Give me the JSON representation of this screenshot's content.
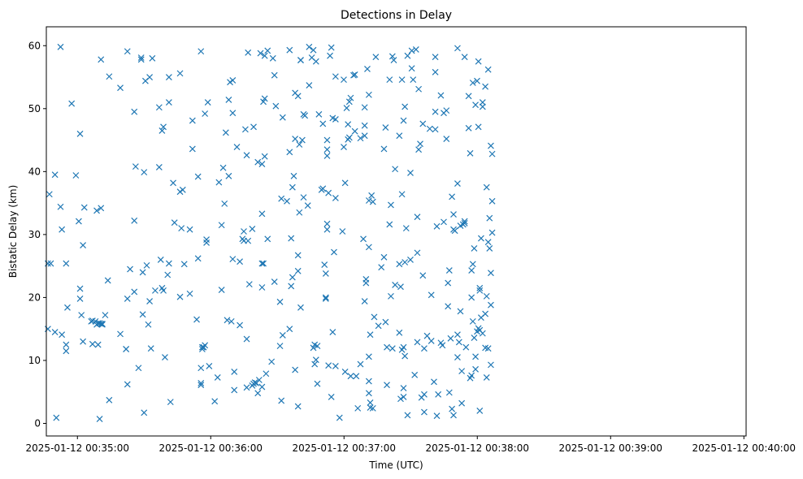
{
  "chart_data": {
    "type": "scatter",
    "title": "Detections in Delay",
    "xlabel": "Time (UTC)",
    "ylabel": "Bistatic Delay (km)",
    "marker": "x",
    "color": "#1f77b4",
    "x_unit": "seconds after 2025-01-12 00:34:00",
    "xlim": [
      46,
      361
    ],
    "ylim": [
      -2,
      63
    ],
    "x_ticks": [
      {
        "value": 60,
        "label": "2025-01-12 00:35:00"
      },
      {
        "value": 120,
        "label": "2025-01-12 00:36:00"
      },
      {
        "value": 180,
        "label": "2025-01-12 00:37:00"
      },
      {
        "value": 240,
        "label": "2025-01-12 00:38:00"
      },
      {
        "value": 300,
        "label": "2025-01-12 00:39:00"
      },
      {
        "value": 360,
        "label": "2025-01-12 00:40:00"
      }
    ],
    "y_ticks": [
      0,
      10,
      20,
      30,
      40,
      50,
      60
    ],
    "points": [
      [
        46.7,
        25.4
      ],
      [
        46.7,
        15.0
      ],
      [
        47.4,
        36.4
      ],
      [
        48.0,
        25.4
      ],
      [
        49.9,
        39.5
      ],
      [
        49.9,
        14.5
      ],
      [
        50.5,
        0.9
      ],
      [
        52.4,
        59.8
      ],
      [
        52.4,
        34.4
      ],
      [
        53.0,
        30.8
      ],
      [
        53.0,
        14.1
      ],
      [
        54.9,
        12.5
      ],
      [
        54.9,
        11.5
      ],
      [
        54.9,
        25.4
      ],
      [
        55.5,
        18.4
      ],
      [
        57.4,
        50.8
      ],
      [
        59.3,
        39.4
      ],
      [
        60.6,
        32.1
      ],
      [
        61.2,
        46.0
      ],
      [
        61.2,
        21.4
      ],
      [
        61.2,
        19.8
      ],
      [
        61.8,
        17.2
      ],
      [
        62.5,
        28.3
      ],
      [
        62.5,
        13.0
      ],
      [
        63.1,
        34.3
      ],
      [
        66.2,
        16.2
      ],
      [
        66.8,
        12.6
      ],
      [
        66.8,
        16.3
      ],
      [
        68.1,
        16.2
      ],
      [
        68.7,
        33.8
      ],
      [
        68.7,
        15.7
      ],
      [
        69.3,
        15.9
      ],
      [
        69.3,
        12.5
      ],
      [
        70.0,
        15.9
      ],
      [
        70.0,
        0.7
      ],
      [
        70.6,
        34.2
      ],
      [
        70.6,
        57.8
      ],
      [
        70.6,
        15.8
      ],
      [
        71.2,
        15.8
      ],
      [
        71.2,
        15.7
      ],
      [
        72.5,
        17.2
      ],
      [
        73.7,
        22.7
      ],
      [
        74.3,
        55.1
      ],
      [
        74.3,
        3.7
      ],
      [
        79.3,
        53.3
      ],
      [
        79.3,
        14.2
      ],
      [
        81.9,
        11.8
      ],
      [
        81.9,
        11.8
      ],
      [
        82.5,
        19.8
      ],
      [
        82.5,
        59.1
      ],
      [
        82.5,
        6.2
      ],
      [
        83.7,
        24.5
      ],
      [
        85.6,
        49.5
      ],
      [
        85.6,
        32.2
      ],
      [
        85.6,
        20.9
      ],
      [
        86.2,
        40.8
      ],
      [
        87.5,
        8.8
      ],
      [
        88.7,
        58.1
      ],
      [
        88.7,
        57.8
      ],
      [
        89.4,
        24.0
      ],
      [
        89.4,
        17.3
      ],
      [
        90.0,
        39.9
      ],
      [
        90.0,
        1.7
      ],
      [
        90.6,
        54.4
      ],
      [
        91.2,
        25.1
      ],
      [
        91.9,
        15.7
      ],
      [
        92.5,
        55.0
      ],
      [
        92.5,
        19.4
      ],
      [
        93.1,
        11.9
      ],
      [
        93.7,
        58.0
      ],
      [
        95.0,
        21.1
      ],
      [
        96.8,
        50.2
      ],
      [
        96.8,
        40.7
      ],
      [
        97.5,
        26.0
      ],
      [
        98.1,
        46.5
      ],
      [
        98.1,
        21.5
      ],
      [
        98.7,
        47.1
      ],
      [
        98.7,
        21.1
      ],
      [
        99.4,
        10.5
      ],
      [
        100.6,
        23.6
      ],
      [
        101.2,
        25.4
      ],
      [
        101.2,
        51.0
      ],
      [
        101.2,
        55.0
      ],
      [
        101.9,
        3.4
      ],
      [
        103.1,
        38.2
      ],
      [
        103.7,
        31.9
      ],
      [
        106.2,
        36.8
      ],
      [
        106.2,
        55.6
      ],
      [
        106.2,
        20.1
      ],
      [
        106.8,
        31.0
      ],
      [
        107.4,
        37.1
      ],
      [
        108.1,
        25.3
      ],
      [
        110.6,
        30.8
      ],
      [
        110.6,
        20.6
      ],
      [
        111.8,
        48.1
      ],
      [
        111.8,
        43.6
      ],
      [
        113.7,
        16.5
      ],
      [
        114.3,
        39.2
      ],
      [
        114.3,
        26.2
      ],
      [
        115.6,
        59.1
      ],
      [
        115.6,
        8.8
      ],
      [
        115.6,
        6.4
      ],
      [
        115.6,
        6.1
      ],
      [
        116.2,
        11.8
      ],
      [
        116.2,
        12.1
      ],
      [
        116.8,
        12.1
      ],
      [
        117.4,
        12.4
      ],
      [
        117.4,
        49.2
      ],
      [
        118.1,
        28.7
      ],
      [
        118.1,
        29.2
      ],
      [
        118.7,
        51.0
      ],
      [
        119.3,
        9.1
      ],
      [
        121.8,
        3.5
      ],
      [
        123.1,
        7.3
      ],
      [
        123.7,
        38.3
      ],
      [
        124.9,
        31.5
      ],
      [
        124.9,
        21.2
      ],
      [
        125.6,
        40.6
      ],
      [
        126.2,
        34.9
      ],
      [
        126.8,
        46.2
      ],
      [
        127.4,
        16.4
      ],
      [
        128.1,
        51.4
      ],
      [
        128.1,
        39.3
      ],
      [
        128.7,
        54.2
      ],
      [
        129.3,
        16.2
      ],
      [
        129.9,
        49.3
      ],
      [
        129.9,
        54.5
      ],
      [
        129.9,
        26.1
      ],
      [
        130.6,
        8.2
      ],
      [
        130.6,
        5.3
      ],
      [
        131.8,
        43.9
      ],
      [
        133.1,
        25.7
      ],
      [
        133.1,
        15.6
      ],
      [
        134.3,
        29.3
      ],
      [
        134.9,
        29.0
      ],
      [
        134.9,
        30.5
      ],
      [
        135.6,
        46.7
      ],
      [
        136.2,
        5.7
      ],
      [
        136.2,
        42.6
      ],
      [
        136.2,
        13.4
      ],
      [
        136.8,
        58.9
      ],
      [
        136.8,
        29.0
      ],
      [
        137.4,
        22.1
      ],
      [
        138.7,
        30.9
      ],
      [
        138.7,
        6.0
      ],
      [
        139.3,
        6.3
      ],
      [
        139.3,
        47.1
      ],
      [
        139.9,
        6.5
      ],
      [
        140.6,
        6.4
      ],
      [
        141.2,
        41.5
      ],
      [
        141.2,
        4.8
      ],
      [
        141.8,
        6.9
      ],
      [
        142.4,
        58.8
      ],
      [
        143.1,
        41.2
      ],
      [
        143.1,
        5.8
      ],
      [
        143.1,
        25.4
      ],
      [
        143.7,
        51.1
      ],
      [
        143.7,
        25.4
      ],
      [
        143.1,
        33.3
      ],
      [
        143.1,
        21.6
      ],
      [
        144.3,
        58.4
      ],
      [
        144.3,
        51.6
      ],
      [
        144.3,
        42.4
      ],
      [
        144.9,
        7.9
      ],
      [
        145.6,
        59.2
      ],
      [
        145.6,
        29.3
      ],
      [
        147.4,
        9.8
      ],
      [
        148.0,
        58.0
      ],
      [
        148.7,
        55.3
      ],
      [
        148.7,
        22.5
      ],
      [
        149.3,
        50.4
      ],
      [
        151.2,
        19.3
      ],
      [
        151.2,
        12.3
      ],
      [
        151.8,
        3.6
      ],
      [
        151.8,
        35.7
      ],
      [
        152.4,
        48.6
      ],
      [
        152.4,
        14.0
      ],
      [
        154.3,
        35.3
      ],
      [
        155.5,
        59.3
      ],
      [
        155.5,
        43.1
      ],
      [
        155.5,
        15.0
      ],
      [
        156.2,
        21.8
      ],
      [
        156.2,
        29.4
      ],
      [
        156.8,
        37.5
      ],
      [
        156.8,
        23.2
      ],
      [
        157.4,
        39.3
      ],
      [
        158.0,
        52.5
      ],
      [
        158.0,
        45.2
      ],
      [
        158.0,
        8.5
      ],
      [
        159.3,
        52.0
      ],
      [
        159.3,
        26.7
      ],
      [
        159.3,
        24.2
      ],
      [
        159.3,
        2.7
      ],
      [
        159.9,
        44.3
      ],
      [
        159.9,
        33.5
      ],
      [
        160.5,
        57.7
      ],
      [
        160.5,
        57.7
      ],
      [
        160.5,
        18.4
      ],
      [
        161.2,
        45.0
      ],
      [
        161.8,
        49.1
      ],
      [
        161.8,
        35.9
      ],
      [
        162.4,
        48.9
      ],
      [
        163.7,
        34.6
      ],
      [
        164.3,
        53.7
      ],
      [
        164.3,
        59.8
      ],
      [
        165.5,
        58.1
      ],
      [
        166.2,
        59.3
      ],
      [
        166.2,
        12.0
      ],
      [
        166.8,
        9.4
      ],
      [
        166.8,
        12.5
      ],
      [
        167.4,
        57.5
      ],
      [
        167.4,
        10.1
      ],
      [
        168.0,
        12.3
      ],
      [
        168.0,
        6.3
      ],
      [
        168.7,
        49.1
      ],
      [
        169.9,
        37.1
      ],
      [
        170.5,
        47.6
      ],
      [
        170.5,
        37.3
      ],
      [
        171.2,
        25.2
      ],
      [
        171.8,
        20.0
      ],
      [
        171.8,
        23.8
      ],
      [
        171.8,
        19.8
      ],
      [
        172.4,
        31.7
      ],
      [
        172.4,
        30.8
      ],
      [
        172.4,
        45.0
      ],
      [
        172.4,
        43.5
      ],
      [
        172.4,
        42.5
      ],
      [
        173.0,
        36.6
      ],
      [
        173.0,
        9.2
      ],
      [
        173.7,
        58.4
      ],
      [
        174.3,
        59.7
      ],
      [
        174.3,
        4.2
      ],
      [
        174.9,
        48.5
      ],
      [
        174.9,
        14.5
      ],
      [
        175.5,
        27.2
      ],
      [
        176.2,
        55.1
      ],
      [
        176.2,
        48.3
      ],
      [
        176.2,
        35.8
      ],
      [
        176.2,
        9.1
      ],
      [
        178.0,
        0.9
      ],
      [
        179.3,
        30.5
      ],
      [
        179.9,
        54.6
      ],
      [
        179.9,
        43.9
      ],
      [
        180.5,
        38.2
      ],
      [
        180.5,
        8.2
      ],
      [
        181.2,
        50.1
      ],
      [
        181.8,
        47.5
      ],
      [
        181.8,
        45.1
      ],
      [
        182.4,
        51.1
      ],
      [
        182.4,
        45.4
      ],
      [
        183.0,
        51.7
      ],
      [
        183.0,
        7.5
      ],
      [
        184.3,
        55.3
      ],
      [
        184.9,
        55.4
      ],
      [
        184.9,
        46.4
      ],
      [
        185.5,
        7.5
      ],
      [
        186.2,
        2.4
      ],
      [
        187.4,
        45.3
      ],
      [
        187.4,
        9.4
      ],
      [
        188.7,
        29.3
      ],
      [
        189.3,
        50.2
      ],
      [
        189.3,
        47.3
      ],
      [
        189.3,
        45.7
      ],
      [
        189.3,
        19.4
      ],
      [
        189.9,
        22.3
      ],
      [
        189.9,
        22.9
      ],
      [
        190.5,
        56.3
      ],
      [
        191.2,
        52.2
      ],
      [
        191.2,
        10.6
      ],
      [
        191.2,
        35.4
      ],
      [
        191.2,
        28.0
      ],
      [
        191.2,
        6.7
      ],
      [
        191.2,
        4.8
      ],
      [
        191.8,
        2.5
      ],
      [
        191.8,
        14.1
      ],
      [
        191.8,
        3.3
      ],
      [
        192.4,
        36.2
      ],
      [
        193.0,
        35.2
      ],
      [
        193.0,
        2.4
      ],
      [
        193.6,
        16.9
      ],
      [
        194.3,
        58.2
      ],
      [
        195.5,
        15.5
      ],
      [
        196.8,
        24.8
      ],
      [
        198.0,
        43.6
      ],
      [
        198.0,
        26.4
      ],
      [
        198.7,
        47.0
      ],
      [
        198.7,
        16.1
      ],
      [
        199.3,
        6.1
      ],
      [
        199.3,
        12.1
      ],
      [
        200.5,
        31.6
      ],
      [
        200.5,
        54.6
      ],
      [
        201.1,
        34.7
      ],
      [
        201.1,
        20.2
      ],
      [
        201.8,
        58.3
      ],
      [
        201.8,
        11.9
      ],
      [
        202.4,
        57.7
      ],
      [
        203.0,
        40.4
      ],
      [
        203.0,
        22.0
      ],
      [
        204.9,
        45.7
      ],
      [
        204.9,
        25.3
      ],
      [
        204.9,
        14.4
      ],
      [
        205.5,
        21.7
      ],
      [
        205.5,
        3.9
      ],
      [
        206.1,
        54.6
      ],
      [
        206.1,
        36.4
      ],
      [
        206.1,
        11.7
      ],
      [
        206.8,
        48.1
      ],
      [
        206.8,
        12.1
      ],
      [
        206.8,
        5.6
      ],
      [
        206.8,
        4.2
      ],
      [
        207.4,
        50.3
      ],
      [
        207.4,
        10.7
      ],
      [
        207.4,
        25.6
      ],
      [
        208.0,
        31.0
      ],
      [
        208.6,
        58.4
      ],
      [
        208.6,
        1.3
      ],
      [
        209.9,
        39.8
      ],
      [
        209.9,
        26.0
      ],
      [
        210.5,
        56.4
      ],
      [
        210.5,
        59.2
      ],
      [
        211.1,
        54.6
      ],
      [
        211.8,
        7.7
      ],
      [
        212.4,
        59.4
      ],
      [
        213.0,
        32.8
      ],
      [
        213.0,
        27.1
      ],
      [
        213.0,
        12.9
      ],
      [
        213.6,
        53.1
      ],
      [
        213.6,
        43.5
      ],
      [
        214.3,
        44.4
      ],
      [
        214.9,
        4.1
      ],
      [
        215.5,
        47.6
      ],
      [
        215.5,
        23.5
      ],
      [
        216.1,
        4.6
      ],
      [
        216.1,
        11.9
      ],
      [
        216.1,
        1.8
      ],
      [
        217.4,
        13.9
      ],
      [
        218.6,
        46.8
      ],
      [
        219.3,
        20.4
      ],
      [
        219.3,
        13.1
      ],
      [
        220.5,
        6.6
      ],
      [
        221.1,
        58.2
      ],
      [
        221.1,
        55.8
      ],
      [
        221.1,
        49.5
      ],
      [
        221.1,
        46.7
      ],
      [
        221.8,
        31.3
      ],
      [
        221.8,
        1.2
      ],
      [
        222.4,
        4.6
      ],
      [
        223.6,
        52.1
      ],
      [
        223.6,
        12.8
      ],
      [
        224.3,
        12.4
      ],
      [
        224.9,
        49.3
      ],
      [
        224.9,
        32.0
      ],
      [
        226.1,
        49.7
      ],
      [
        226.1,
        45.2
      ],
      [
        226.8,
        22.3
      ],
      [
        226.8,
        18.6
      ],
      [
        227.4,
        4.9
      ],
      [
        227.4,
        24.3
      ],
      [
        228.0,
        13.5
      ],
      [
        228.6,
        36.0
      ],
      [
        228.6,
        2.3
      ],
      [
        229.3,
        33.2
      ],
      [
        229.3,
        30.8
      ],
      [
        229.3,
        1.3
      ],
      [
        229.9,
        30.6
      ],
      [
        231.1,
        59.6
      ],
      [
        231.1,
        38.1
      ],
      [
        231.1,
        14.1
      ],
      [
        231.1,
        10.5
      ],
      [
        231.8,
        12.9
      ],
      [
        232.4,
        31.4
      ],
      [
        232.4,
        17.8
      ],
      [
        233.0,
        8.3
      ],
      [
        233.0,
        3.2
      ],
      [
        233.6,
        31.6
      ],
      [
        234.3,
        58.2
      ],
      [
        234.3,
        32.1
      ],
      [
        234.3,
        31.8
      ],
      [
        234.9,
        12.1
      ],
      [
        236.1,
        52.0
      ],
      [
        236.1,
        46.9
      ],
      [
        236.8,
        42.9
      ],
      [
        236.8,
        7.2
      ],
      [
        237.4,
        24.3
      ],
      [
        237.4,
        20.0
      ],
      [
        237.4,
        7.6
      ],
      [
        238.0,
        54.1
      ],
      [
        238.0,
        16.2
      ],
      [
        238.0,
        25.3
      ],
      [
        238.6,
        27.8
      ],
      [
        238.6,
        13.6
      ],
      [
        239.2,
        50.6
      ],
      [
        239.2,
        10.6
      ],
      [
        239.2,
        8.6
      ],
      [
        239.9,
        54.4
      ],
      [
        239.9,
        14.6
      ],
      [
        240.5,
        57.5
      ],
      [
        240.5,
        47.1
      ],
      [
        240.5,
        15.1
      ],
      [
        241.1,
        2.0
      ],
      [
        241.1,
        21.5
      ],
      [
        241.1,
        21.1
      ],
      [
        241.1,
        14.8
      ],
      [
        241.7,
        29.4
      ],
      [
        241.7,
        16.8
      ],
      [
        242.4,
        50.3
      ],
      [
        242.4,
        51.0
      ],
      [
        242.4,
        14.3
      ],
      [
        243.6,
        53.5
      ],
      [
        243.6,
        12.0
      ],
      [
        243.6,
        17.4
      ],
      [
        244.2,
        20.2
      ],
      [
        244.2,
        37.5
      ],
      [
        244.2,
        7.3
      ],
      [
        244.9,
        56.2
      ],
      [
        244.9,
        28.8
      ],
      [
        244.9,
        11.9
      ],
      [
        245.5,
        32.6
      ],
      [
        245.5,
        27.8
      ],
      [
        246.1,
        44.1
      ],
      [
        246.1,
        23.9
      ],
      [
        246.1,
        9.3
      ],
      [
        246.1,
        18.8
      ],
      [
        246.7,
        42.8
      ],
      [
        246.7,
        35.3
      ],
      [
        246.7,
        30.3
      ]
    ]
  }
}
